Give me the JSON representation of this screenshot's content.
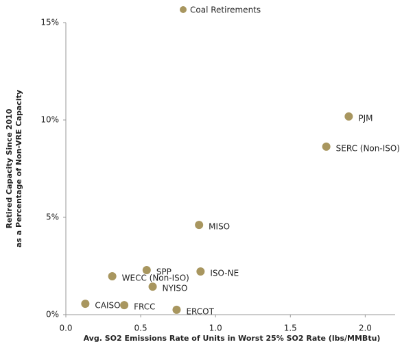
{
  "chart_data": {
    "type": "scatter",
    "x_label": "Avg. SO2 Emissions Rate of Units in Worst 25% SO2 Rate (lbs/MMBtu)",
    "y_label": [
      "Retired Capacity Since 2010",
      "as a Percentage of Non-VRE Capacity"
    ],
    "series": [
      {
        "name": "Coal Retirements",
        "color": "#a8965f",
        "labels": [
          "CAISO",
          "FRCC",
          "ERCOT",
          "WECC (Non-ISO)",
          "SPP",
          "NYISO",
          "ISO-NE",
          "MISO",
          "SERC (Non-ISO)",
          "PJM"
        ],
        "x": [
          0.13,
          0.39,
          0.74,
          0.31,
          0.54,
          0.58,
          0.9,
          0.89,
          1.74,
          1.89
        ],
        "values": [
          0.56,
          0.49,
          0.25,
          1.97,
          2.29,
          1.44,
          2.22,
          4.61,
          8.63,
          10.18
        ]
      }
    ],
    "xlim": [
      0,
      2.2
    ],
    "xticks": [
      {
        "value": 0,
        "label": "0.0"
      },
      0.5,
      {
        "value": 1,
        "label": "1.0"
      },
      1.5,
      {
        "value": 2,
        "label": "2.0"
      }
    ],
    "ylim": [
      0,
      15
    ],
    "yticks": [
      {
        "value": 0,
        "label": "0%"
      },
      {
        "value": 5,
        "label": "5%"
      },
      {
        "value": 10,
        "label": "10%"
      },
      {
        "value": 15,
        "label": "15%"
      }
    ],
    "grid": false,
    "legend": "top"
  }
}
